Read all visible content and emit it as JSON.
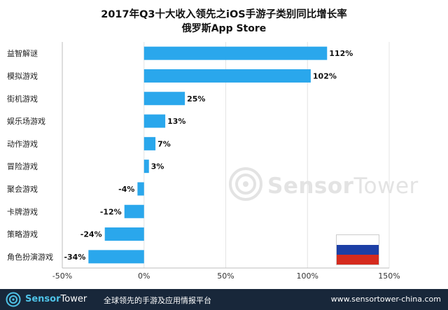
{
  "chart_data": {
    "type": "bar",
    "orientation": "horizontal",
    "title": "2017年Q3十大收入领先之iOS手游子类别同比增长率",
    "subtitle": "俄罗斯App Store",
    "categories": [
      "益智解谜",
      "模拟游戏",
      "街机游戏",
      "娱乐场游戏",
      "动作游戏",
      "冒险游戏",
      "聚会游戏",
      "卡牌游戏",
      "策略游戏",
      "角色扮演游戏"
    ],
    "values": [
      112,
      102,
      25,
      13,
      7,
      3,
      -4,
      -12,
      -24,
      -34
    ],
    "value_labels": [
      "112%",
      "102%",
      "25%",
      "13%",
      "7%",
      "3%",
      "-4%",
      "-12%",
      "-24%",
      "-34%"
    ],
    "xlim": [
      -50,
      150
    ],
    "xticks": [
      -50,
      0,
      50,
      100,
      150
    ],
    "xtick_labels": [
      "-50%",
      "0%",
      "50%",
      "100%",
      "150%"
    ],
    "bar_color": "#2aa7ec",
    "grid": true
  },
  "watermark": {
    "brand_a": "Sensor",
    "brand_b": "Tower"
  },
  "footer": {
    "brand_a": "Sensor",
    "brand_b": "Tower",
    "tagline": "全球领先的手游及应用情报平台",
    "url": "www.sensortower-china.com"
  },
  "colors": {
    "footer_bg": "#18273a",
    "accent": "#4fc3e8",
    "flag": [
      "#ffffff",
      "#1c3fa6",
      "#d52b1e"
    ]
  }
}
